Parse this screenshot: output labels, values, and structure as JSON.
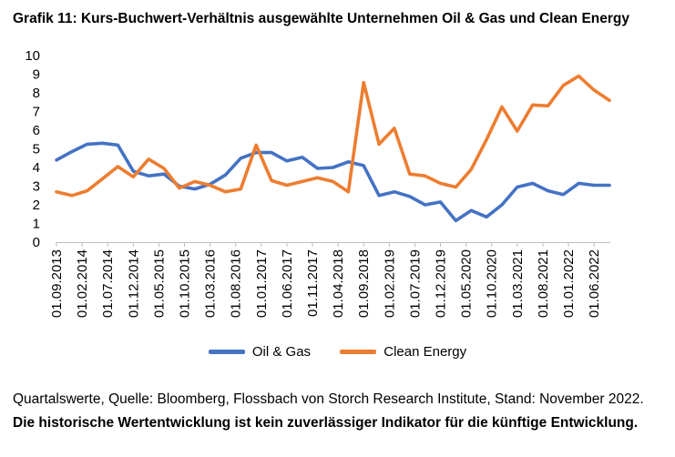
{
  "title": "Grafik 11: Kurs-Buchwert-Verhältnis ausgewählte Unternehmen Oil & Gas und Clean Energy",
  "footnote_plain": "Quartalswerte, Quelle: Bloomberg, Flossbach von Storch Research Institute, Stand: November 2022.",
  "footnote_bold": "Die historische Wertentwicklung ist kein zuverlässiger Indikator für die künftige Entwicklung.",
  "colors": {
    "oil_gas": "#4472C4",
    "clean_energy": "#ED7D31",
    "axis": "#bfbfbf"
  },
  "chart_data": {
    "type": "line",
    "title": "",
    "xlabel": "",
    "ylabel": "",
    "ylim": [
      0,
      10
    ],
    "yticks": [
      0,
      1,
      2,
      3,
      4,
      5,
      6,
      7,
      8,
      9,
      10
    ],
    "grid": false,
    "legend": "bottom",
    "x": [
      "01.09.2013",
      "01.12.2013",
      "01.03.2014",
      "01.06.2014",
      "01.09.2014",
      "01.12.2014",
      "01.03.2015",
      "01.06.2015",
      "01.09.2015",
      "01.12.2015",
      "01.03.2016",
      "01.06.2016",
      "01.09.2016",
      "01.12.2016",
      "01.03.2017",
      "01.06.2017",
      "01.09.2017",
      "01.12.2017",
      "01.03.2018",
      "01.06.2018",
      "01.09.2018",
      "01.12.2018",
      "01.03.2019",
      "01.06.2019",
      "01.09.2019",
      "01.12.2019",
      "01.03.2020",
      "01.06.2020",
      "01.09.2020",
      "01.12.2020",
      "01.03.2021",
      "01.06.2021",
      "01.09.2021",
      "01.12.2021",
      "01.03.2022",
      "01.06.2022",
      "01.09.2022"
    ],
    "tick_labels": [
      "01.09.2013",
      "01.02.2014",
      "01.07.2014",
      "01.12.2014",
      "01.05.2015",
      "01.10.2015",
      "01.03.2016",
      "01.08.2016",
      "01.01.2017",
      "01.06.2017",
      "01.11.2017",
      "01.04.2018",
      "01.09.2018",
      "01.02.2019",
      "01.07.2019",
      "01.12.2019",
      "01.05.2020",
      "01.10.2020",
      "01.03.2021",
      "01.08.2021",
      "01.01.2022",
      "01.06.2022"
    ],
    "series": [
      {
        "name": "Oil & Gas",
        "values": [
          4.4,
          4.85,
          5.25,
          5.3,
          5.2,
          3.8,
          3.55,
          3.65,
          3.0,
          2.85,
          3.1,
          3.6,
          4.5,
          4.8,
          4.8,
          4.35,
          4.55,
          3.95,
          4.0,
          4.3,
          4.1,
          2.5,
          2.7,
          2.45,
          2.0,
          2.15,
          1.15,
          1.7,
          1.35,
          2.0,
          2.95,
          3.15,
          2.75,
          2.55,
          3.15,
          3.05,
          3.05
        ]
      },
      {
        "name": "Clean Energy",
        "values": [
          2.7,
          2.5,
          2.75,
          3.4,
          4.05,
          3.5,
          4.45,
          3.95,
          2.9,
          3.25,
          3.05,
          2.7,
          2.85,
          5.2,
          3.3,
          3.05,
          3.25,
          3.45,
          3.25,
          2.7,
          8.55,
          5.25,
          6.1,
          3.65,
          3.55,
          3.15,
          2.95,
          3.9,
          5.5,
          7.25,
          5.95,
          7.35,
          7.3,
          8.4,
          8.9,
          8.15,
          7.6
        ]
      }
    ]
  }
}
